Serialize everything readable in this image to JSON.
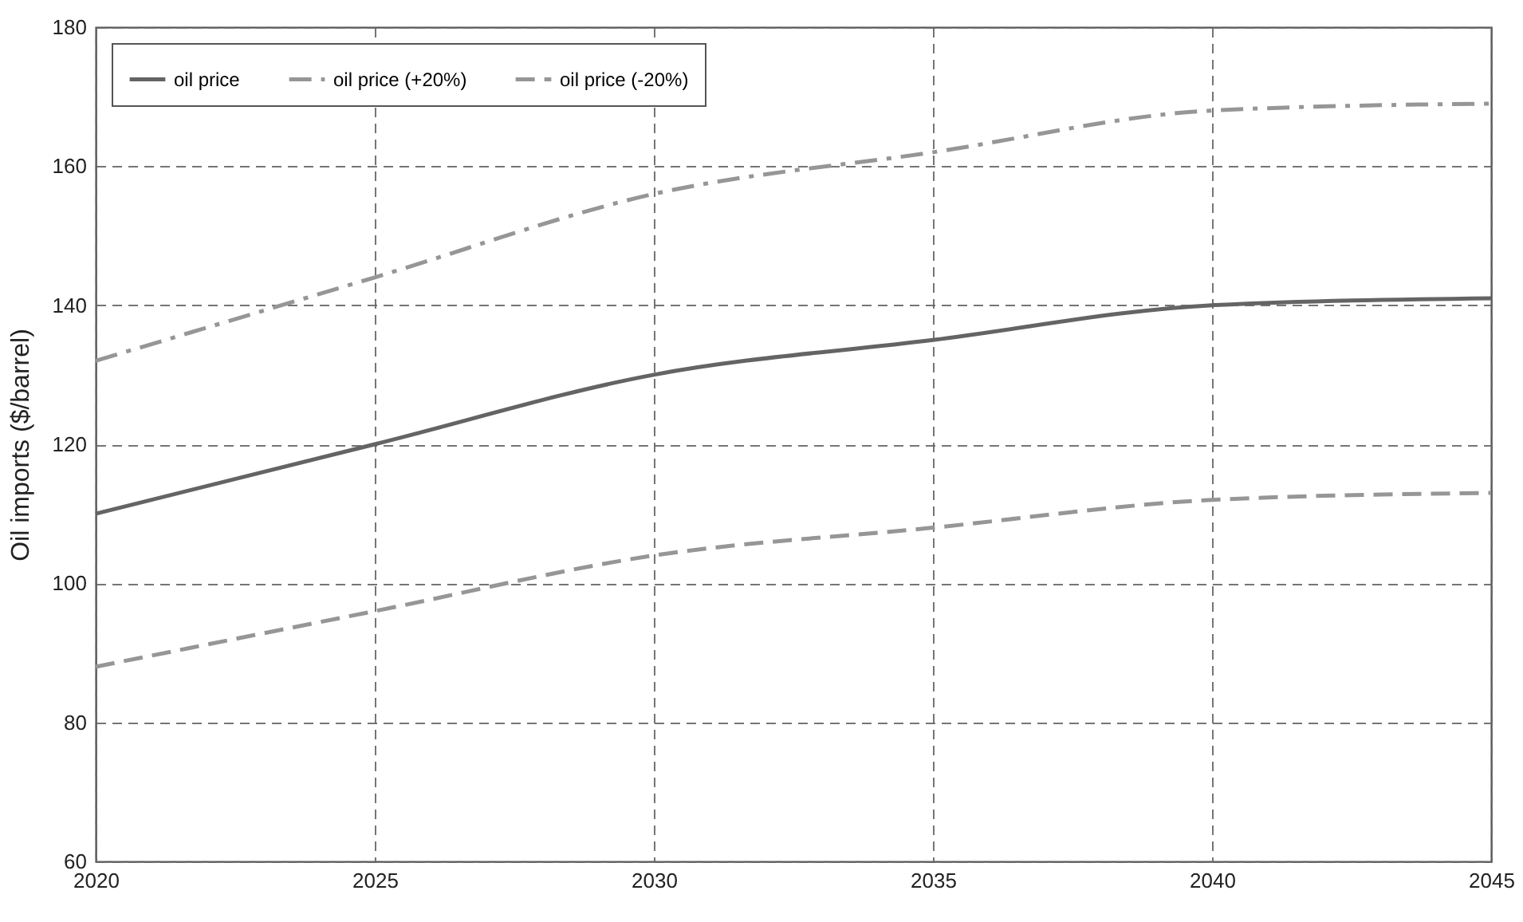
{
  "chart_data": {
    "type": "line",
    "ylabel": "Oil imports ($/barrel)",
    "x": [
      2020,
      2025,
      2030,
      2035,
      2040,
      2045
    ],
    "series": [
      {
        "name": "oil price",
        "color": "#646464",
        "line_style": "solid",
        "values": [
          110,
          120,
          130,
          135,
          140,
          141
        ]
      },
      {
        "name": "oil price (+20%)",
        "color": "#969696",
        "line_style": "dashdot",
        "values": [
          132,
          144,
          156,
          162,
          168,
          169
        ]
      },
      {
        "name": "oil price (-20%)",
        "color": "#969696",
        "line_style": "dashed",
        "values": [
          88,
          96,
          104,
          108,
          112,
          113
        ]
      }
    ],
    "xlim": [
      2020,
      2045
    ],
    "xticks": [
      2020,
      2025,
      2030,
      2035,
      2040,
      2045
    ],
    "ylim": [
      60,
      180
    ],
    "yticks": [
      60,
      80,
      100,
      120,
      140,
      160,
      180
    ],
    "grid": true,
    "legend": "top left"
  }
}
